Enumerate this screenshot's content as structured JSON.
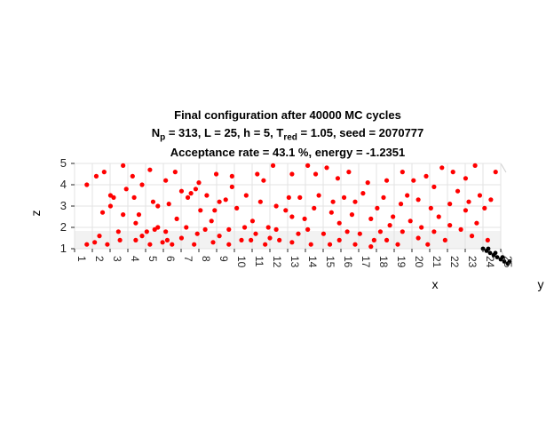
{
  "chart_data": {
    "type": "scatter3d",
    "title": {
      "line1": "Final configuration after 40000 MC cycles",
      "line2": {
        "N": "N",
        "N_sub": "p",
        "mid": " = 313, L = 25, h = 5, T",
        "T_sub": "red",
        "tail": " = 1.05, seed = 2070777"
      },
      "line3": "Acceptance rate = 43.1 %, energy = -1.2351"
    },
    "xlabel": "x",
    "ylabel": "y",
    "zlabel": "z",
    "xticks": [
      "1",
      "2",
      "3",
      "4",
      "5",
      "6",
      "7",
      "8",
      "9",
      "10",
      "11",
      "12",
      "13",
      "14",
      "15",
      "16",
      "17",
      "18",
      "19",
      "20",
      "21",
      "22",
      "23",
      "24",
      "25"
    ],
    "zticks": [
      "1",
      "2",
      "3",
      "4",
      "5"
    ],
    "xlim": [
      1,
      25
    ],
    "zlim": [
      1,
      5
    ],
    "grid": true,
    "marker_color": "#ff0000",
    "bottom_layer_color": "#000000",
    "points": [
      {
        "x": 1,
        "z": 4
      },
      {
        "x": 1,
        "z": 1.2
      },
      {
        "x": 1.5,
        "z": 1.3
      },
      {
        "x": 1.8,
        "z": 1.6
      },
      {
        "x": 1.6,
        "z": 4.4
      },
      {
        "x": 2,
        "z": 2.7
      },
      {
        "x": 2.1,
        "z": 4.6
      },
      {
        "x": 2.3,
        "z": 1.2
      },
      {
        "x": 2.5,
        "z": 3
      },
      {
        "x": 2.5,
        "z": 3.5
      },
      {
        "x": 2.7,
        "z": 3.4
      },
      {
        "x": 3,
        "z": 1.8
      },
      {
        "x": 3.1,
        "z": 1.4
      },
      {
        "x": 3.3,
        "z": 4.9
      },
      {
        "x": 3.3,
        "z": 2.6
      },
      {
        "x": 3.5,
        "z": 3.8
      },
      {
        "x": 3.9,
        "z": 4.4
      },
      {
        "x": 4,
        "z": 3.4
      },
      {
        "x": 4.1,
        "z": 2.2
      },
      {
        "x": 4.1,
        "z": 1.4
      },
      {
        "x": 4.3,
        "z": 2.6
      },
      {
        "x": 4.5,
        "z": 4
      },
      {
        "x": 4.5,
        "z": 1.6
      },
      {
        "x": 4.8,
        "z": 1.8
      },
      {
        "x": 5,
        "z": 1.2
      },
      {
        "x": 5,
        "z": 4.7
      },
      {
        "x": 5.2,
        "z": 3.2
      },
      {
        "x": 5.3,
        "z": 1.9
      },
      {
        "x": 5.5,
        "z": 3
      },
      {
        "x": 5.5,
        "z": 2
      },
      {
        "x": 5.8,
        "z": 1.3
      },
      {
        "x": 6,
        "z": 1.8
      },
      {
        "x": 6,
        "z": 4.2
      },
      {
        "x": 6.1,
        "z": 1.4
      },
      {
        "x": 6.2,
        "z": 3.1
      },
      {
        "x": 6.4,
        "z": 1.2
      },
      {
        "x": 6.6,
        "z": 4.6
      },
      {
        "x": 6.7,
        "z": 2.4
      },
      {
        "x": 7,
        "z": 1.5
      },
      {
        "x": 7,
        "z": 3.7
      },
      {
        "x": 7.3,
        "z": 2
      },
      {
        "x": 7.4,
        "z": 3.4
      },
      {
        "x": 7.6,
        "z": 3.6
      },
      {
        "x": 7.8,
        "z": 1.2
      },
      {
        "x": 7.9,
        "z": 3.8
      },
      {
        "x": 8,
        "z": 1.7
      },
      {
        "x": 8.1,
        "z": 4.1
      },
      {
        "x": 8.2,
        "z": 2.8
      },
      {
        "x": 8.5,
        "z": 1.9
      },
      {
        "x": 8.6,
        "z": 3.5
      },
      {
        "x": 8.9,
        "z": 2.3
      },
      {
        "x": 9,
        "z": 1.3
      },
      {
        "x": 9.1,
        "z": 2.8
      },
      {
        "x": 9.2,
        "z": 4.5
      },
      {
        "x": 9.4,
        "z": 1.6
      },
      {
        "x": 9.4,
        "z": 3.2
      },
      {
        "x": 9.8,
        "z": 3.3
      },
      {
        "x": 10,
        "z": 1.9
      },
      {
        "x": 10,
        "z": 1.2
      },
      {
        "x": 10.2,
        "z": 4.4
      },
      {
        "x": 10.2,
        "z": 3.9
      },
      {
        "x": 10.5,
        "z": 2.9
      },
      {
        "x": 10.8,
        "z": 1.4
      },
      {
        "x": 11,
        "z": 2
      },
      {
        "x": 11.1,
        "z": 3.5
      },
      {
        "x": 11.4,
        "z": 1.4
      },
      {
        "x": 11.5,
        "z": 2.3
      },
      {
        "x": 11.7,
        "z": 1.7
      },
      {
        "x": 11.8,
        "z": 4.5
      },
      {
        "x": 12,
        "z": 3.2
      },
      {
        "x": 12.2,
        "z": 4.2
      },
      {
        "x": 12.3,
        "z": 1.2
      },
      {
        "x": 12.5,
        "z": 2
      },
      {
        "x": 12.6,
        "z": 1.5
      },
      {
        "x": 12.8,
        "z": 4.9
      },
      {
        "x": 13,
        "z": 3
      },
      {
        "x": 13,
        "z": 1.9
      },
      {
        "x": 13.2,
        "z": 1.4
      },
      {
        "x": 13.6,
        "z": 2.8
      },
      {
        "x": 13.8,
        "z": 3.4
      },
      {
        "x": 14,
        "z": 1.3
      },
      {
        "x": 14,
        "z": 2.5
      },
      {
        "x": 14,
        "z": 4.5
      },
      {
        "x": 14.4,
        "z": 1.7
      },
      {
        "x": 14.5,
        "z": 3.4
      },
      {
        "x": 14.8,
        "z": 2.4
      },
      {
        "x": 15,
        "z": 1.9
      },
      {
        "x": 15,
        "z": 4.9
      },
      {
        "x": 15.2,
        "z": 1.2
      },
      {
        "x": 15.4,
        "z": 2.9
      },
      {
        "x": 15.5,
        "z": 4.5
      },
      {
        "x": 15.7,
        "z": 3.5
      },
      {
        "x": 16,
        "z": 1.7
      },
      {
        "x": 16.2,
        "z": 4.8
      },
      {
        "x": 16.4,
        "z": 1.2
      },
      {
        "x": 16.5,
        "z": 2.7
      },
      {
        "x": 16.6,
        "z": 3.2
      },
      {
        "x": 16.9,
        "z": 4.3
      },
      {
        "x": 17,
        "z": 1.4
      },
      {
        "x": 17,
        "z": 2.2
      },
      {
        "x": 17.3,
        "z": 3.4
      },
      {
        "x": 17.5,
        "z": 1.8
      },
      {
        "x": 17.6,
        "z": 4.6
      },
      {
        "x": 17.8,
        "z": 2.6
      },
      {
        "x": 18,
        "z": 1.2
      },
      {
        "x": 18,
        "z": 3.2
      },
      {
        "x": 18.3,
        "z": 1.7
      },
      {
        "x": 18.5,
        "z": 3.6
      },
      {
        "x": 18.8,
        "z": 4.1
      },
      {
        "x": 19,
        "z": 2.4
      },
      {
        "x": 19,
        "z": 1.1
      },
      {
        "x": 19.2,
        "z": 1.4
      },
      {
        "x": 19.4,
        "z": 2.9
      },
      {
        "x": 19.6,
        "z": 1.8
      },
      {
        "x": 19.8,
        "z": 3.4
      },
      {
        "x": 20,
        "z": 4.2
      },
      {
        "x": 20,
        "z": 1.4
      },
      {
        "x": 20.2,
        "z": 2.1
      },
      {
        "x": 20.4,
        "z": 2.5
      },
      {
        "x": 20.7,
        "z": 1.2
      },
      {
        "x": 20.9,
        "z": 3.1
      },
      {
        "x": 21,
        "z": 4.6
      },
      {
        "x": 21,
        "z": 1.8
      },
      {
        "x": 21.3,
        "z": 3.5
      },
      {
        "x": 21.5,
        "z": 2.3
      },
      {
        "x": 21.7,
        "z": 4.2
      },
      {
        "x": 22,
        "z": 1.5
      },
      {
        "x": 22,
        "z": 3.3
      },
      {
        "x": 22.2,
        "z": 2
      },
      {
        "x": 22.5,
        "z": 4.4
      },
      {
        "x": 22.6,
        "z": 1.2
      },
      {
        "x": 22.8,
        "z": 2.9
      },
      {
        "x": 23,
        "z": 1.8
      },
      {
        "x": 23,
        "z": 3.9
      },
      {
        "x": 23.3,
        "z": 2.5
      },
      {
        "x": 23.5,
        "z": 4.8
      },
      {
        "x": 23.7,
        "z": 1.4
      },
      {
        "x": 24,
        "z": 3.1
      },
      {
        "x": 24,
        "z": 2.1
      },
      {
        "x": 24.2,
        "z": 4.6
      },
      {
        "x": 24.5,
        "z": 3.7
      },
      {
        "x": 24.7,
        "z": 1.9
      },
      {
        "x": 25,
        "z": 2.8
      },
      {
        "x": 25,
        "z": 4.3
      },
      {
        "x": 25.2,
        "z": 3.2
      },
      {
        "x": 25.4,
        "z": 1.6
      },
      {
        "x": 25.6,
        "z": 4.9
      },
      {
        "x": 25.7,
        "z": 2.2
      },
      {
        "x": 25.9,
        "z": 3.5
      },
      {
        "x": 26.2,
        "z": 2.9
      },
      {
        "x": 26.4,
        "z": 1.4
      },
      {
        "x": 26.6,
        "z": 3.3
      },
      {
        "x": 26.9,
        "z": 4.6
      }
    ],
    "bottom_layer": [
      {
        "x": 24.0,
        "z": 1.0
      },
      {
        "x": 24.2,
        "z": 0.9
      },
      {
        "x": 24.4,
        "z": 0.8
      },
      {
        "x": 24.6,
        "z": 0.7
      },
      {
        "x": 24.8,
        "z": 0.6
      },
      {
        "x": 25.0,
        "z": 0.5
      },
      {
        "x": 25.2,
        "z": 0.4
      },
      {
        "x": 25.4,
        "z": 0.3
      },
      {
        "x": 24.3,
        "z": 1.0
      },
      {
        "x": 24.7,
        "z": 0.8
      },
      {
        "x": 25.1,
        "z": 0.6
      },
      {
        "x": 25.5,
        "z": 0.4
      }
    ]
  }
}
